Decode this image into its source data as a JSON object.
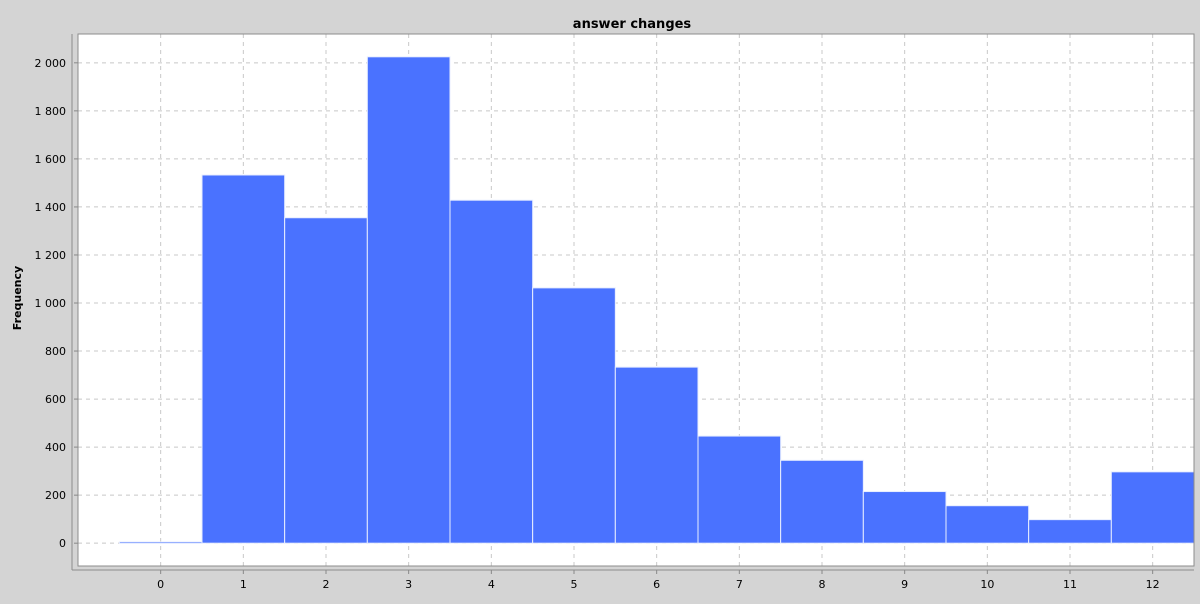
{
  "chart_data": {
    "type": "bar",
    "title": "answer changes",
    "xlabel": "",
    "ylabel": "Frequency",
    "categories": [
      "0",
      "1",
      "2",
      "3",
      "4",
      "5",
      "6",
      "7",
      "8",
      "9",
      "10",
      "11",
      "12"
    ],
    "values": [
      5,
      1533,
      1355,
      2025,
      1428,
      1063,
      733,
      446,
      345,
      215,
      156,
      98,
      297
    ],
    "ylim": [
      -95,
      2120
    ],
    "y_ticks": [
      0,
      200,
      400,
      600,
      800,
      1000,
      1200,
      1400,
      1600,
      1800,
      2000
    ],
    "y_tick_labels": [
      "0",
      "200",
      "400",
      "600",
      "800",
      "1 000",
      "1 200",
      "1 400",
      "1 600",
      "1 800",
      "2 000"
    ],
    "grid": true,
    "colors": {
      "bar_fill": "#4a72ff",
      "bar_stroke": "#e8eeff",
      "plot_background": "#ffffff",
      "page_background": "#d4d4d4",
      "grid": "#c8c8c8",
      "text": "#000000"
    }
  }
}
